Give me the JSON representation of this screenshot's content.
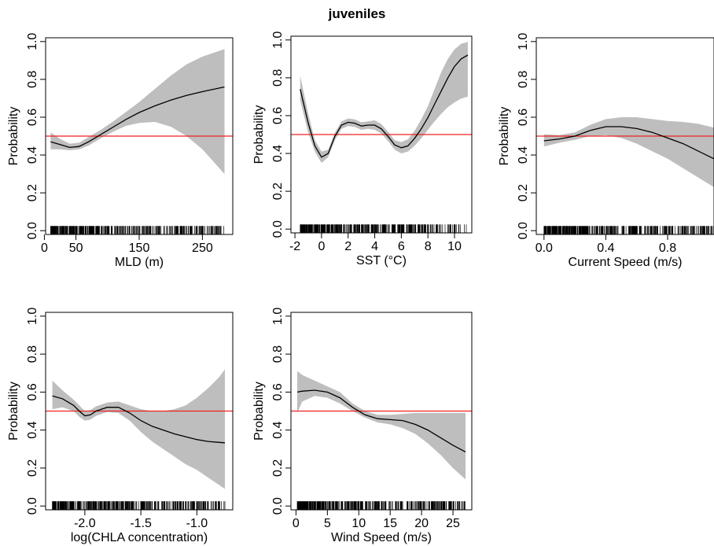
{
  "figure_title": "juveniles",
  "colors": {
    "band": "#bebebe",
    "line": "#000000",
    "reference": "#ee2222",
    "frame": "#000000"
  },
  "chart_data": [
    {
      "type": "line",
      "xlabel": "MLD (m)",
      "ylabel": "Probability",
      "xlim": [
        2,
        298
      ],
      "ylim": [
        -0.02,
        1.02
      ],
      "xticks": [
        0,
        50,
        150,
        250
      ],
      "xtick_labels": [
        "0",
        "50",
        "150",
        "250"
      ],
      "yticks": [
        0.0,
        0.2,
        0.4,
        0.6,
        0.8,
        1.0
      ],
      "ytick_labels": [
        "0.0",
        "0.2",
        "0.4",
        "0.6",
        "0.8",
        "1.0"
      ],
      "reference_line": 0.5,
      "rug_range": [
        10,
        285
      ],
      "x": [
        10,
        25,
        40,
        55,
        70,
        90,
        110,
        130,
        150,
        175,
        200,
        225,
        250,
        285
      ],
      "y": [
        0.47,
        0.455,
        0.44,
        0.445,
        0.47,
        0.51,
        0.55,
        0.59,
        0.625,
        0.66,
        0.69,
        0.715,
        0.735,
        0.76
      ],
      "lower": [
        0.43,
        0.43,
        0.425,
        0.43,
        0.45,
        0.49,
        0.525,
        0.555,
        0.57,
        0.575,
        0.55,
        0.5,
        0.43,
        0.3
      ],
      "upper": [
        0.52,
        0.485,
        0.46,
        0.465,
        0.495,
        0.535,
        0.58,
        0.63,
        0.68,
        0.75,
        0.82,
        0.88,
        0.92,
        0.96
      ]
    },
    {
      "type": "line",
      "xlabel": "SST (°C)",
      "ylabel": "Probability",
      "xlim": [
        -2.3,
        11.3
      ],
      "ylim": [
        -0.02,
        1.02
      ],
      "xticks": [
        -2,
        0,
        2,
        4,
        6,
        8,
        10
      ],
      "xtick_labels": [
        "-2",
        "0",
        "2",
        "4",
        "6",
        "8",
        "10"
      ],
      "yticks": [
        0.0,
        0.2,
        0.4,
        0.6,
        0.8,
        1.0
      ],
      "ytick_labels": [
        "0.0",
        "0.2",
        "0.4",
        "0.6",
        "0.8",
        "1.0"
      ],
      "reference_line": 0.5,
      "rug_range": [
        -1.6,
        11
      ],
      "x": [
        -1.6,
        -1,
        -0.5,
        0,
        0.5,
        1,
        1.5,
        2,
        2.5,
        3,
        3.5,
        4,
        4.5,
        5,
        5.5,
        6,
        6.5,
        7,
        7.5,
        8,
        8.5,
        9,
        9.5,
        10,
        10.5,
        11
      ],
      "y": [
        0.74,
        0.56,
        0.44,
        0.38,
        0.4,
        0.49,
        0.55,
        0.565,
        0.56,
        0.545,
        0.55,
        0.55,
        0.53,
        0.49,
        0.445,
        0.43,
        0.44,
        0.48,
        0.53,
        0.59,
        0.66,
        0.73,
        0.8,
        0.86,
        0.9,
        0.92
      ],
      "lower": [
        0.68,
        0.51,
        0.41,
        0.35,
        0.38,
        0.47,
        0.53,
        0.545,
        0.54,
        0.525,
        0.53,
        0.525,
        0.505,
        0.465,
        0.42,
        0.4,
        0.41,
        0.44,
        0.48,
        0.525,
        0.57,
        0.61,
        0.645,
        0.67,
        0.69,
        0.7
      ],
      "upper": [
        0.81,
        0.61,
        0.47,
        0.41,
        0.42,
        0.51,
        0.57,
        0.585,
        0.58,
        0.565,
        0.57,
        0.575,
        0.555,
        0.515,
        0.47,
        0.46,
        0.475,
        0.52,
        0.58,
        0.65,
        0.74,
        0.83,
        0.9,
        0.95,
        0.98,
        0.99
      ]
    },
    {
      "type": "line",
      "xlabel": "Current Speed (m/s)",
      "ylabel": "Probability",
      "xlim": [
        -0.05,
        1.1
      ],
      "ylim": [
        -0.02,
        1.02
      ],
      "xticks": [
        0.0,
        0.4,
        0.8
      ],
      "xtick_labels": [
        "0.0",
        "0.4",
        "0.8"
      ],
      "yticks": [
        0.0,
        0.2,
        0.4,
        0.6,
        0.8,
        1.0
      ],
      "ytick_labels": [
        "0.0",
        "0.2",
        "0.4",
        "0.6",
        "0.8",
        "1.0"
      ],
      "reference_line": 0.5,
      "rug_range": [
        0.0,
        1.1
      ],
      "x": [
        0.0,
        0.1,
        0.2,
        0.3,
        0.4,
        0.5,
        0.6,
        0.7,
        0.8,
        0.9,
        1.0,
        1.1
      ],
      "y": [
        0.475,
        0.485,
        0.5,
        0.53,
        0.55,
        0.55,
        0.54,
        0.52,
        0.49,
        0.46,
        0.42,
        0.38
      ],
      "lower": [
        0.445,
        0.465,
        0.48,
        0.5,
        0.505,
        0.49,
        0.46,
        0.42,
        0.38,
        0.33,
        0.28,
        0.23
      ],
      "upper": [
        0.51,
        0.505,
        0.52,
        0.56,
        0.59,
        0.6,
        0.6,
        0.59,
        0.58,
        0.575,
        0.565,
        0.545
      ]
    },
    {
      "type": "line",
      "xlabel": "log(CHLA concentration)",
      "ylabel": "Probability",
      "xlim": [
        -2.35,
        -0.68
      ],
      "ylim": [
        -0.02,
        1.02
      ],
      "xticks": [
        -2.0,
        -1.5,
        -1.0
      ],
      "xtick_labels": [
        "-2.0",
        "-1.5",
        "-1.0"
      ],
      "yticks": [
        0.0,
        0.2,
        0.4,
        0.6,
        0.8,
        1.0
      ],
      "ytick_labels": [
        "0.0",
        "0.2",
        "0.4",
        "0.6",
        "0.8",
        "1.0"
      ],
      "reference_line": 0.5,
      "rug_range": [
        -2.29,
        -0.75
      ],
      "x": [
        -2.29,
        -2.2,
        -2.1,
        -2.05,
        -2.0,
        -1.95,
        -1.9,
        -1.8,
        -1.7,
        -1.6,
        -1.5,
        -1.4,
        -1.3,
        -1.2,
        -1.1,
        -1.0,
        -0.9,
        -0.8,
        -0.75
      ],
      "y": [
        0.58,
        0.565,
        0.53,
        0.5,
        0.475,
        0.48,
        0.5,
        0.52,
        0.52,
        0.49,
        0.45,
        0.42,
        0.4,
        0.38,
        0.365,
        0.35,
        0.34,
        0.335,
        0.333
      ],
      "lower": [
        0.51,
        0.52,
        0.5,
        0.47,
        0.45,
        0.455,
        0.475,
        0.495,
        0.49,
        0.45,
        0.39,
        0.34,
        0.3,
        0.26,
        0.22,
        0.19,
        0.15,
        0.11,
        0.09
      ],
      "upper": [
        0.66,
        0.61,
        0.56,
        0.53,
        0.5,
        0.505,
        0.525,
        0.545,
        0.55,
        0.53,
        0.51,
        0.5,
        0.5,
        0.51,
        0.53,
        0.57,
        0.62,
        0.68,
        0.72
      ]
    },
    {
      "type": "line",
      "xlabel": "Wind Speed (m/s)",
      "ylabel": "Probability",
      "xlim": [
        -0.8,
        28
      ],
      "ylim": [
        -0.02,
        1.02
      ],
      "xticks": [
        0,
        5,
        10,
        15,
        20,
        25
      ],
      "xtick_labels": [
        "0",
        "5",
        "10",
        "15",
        "20",
        "25"
      ],
      "yticks": [
        0.0,
        0.2,
        0.4,
        0.6,
        0.8,
        1.0
      ],
      "ytick_labels": [
        "0.0",
        "0.2",
        "0.4",
        "0.6",
        "0.8",
        "1.0"
      ],
      "reference_line": 0.5,
      "rug_range": [
        0.2,
        27
      ],
      "x": [
        0.2,
        1,
        3,
        5,
        7,
        9,
        11,
        13,
        15,
        17,
        19,
        21,
        23,
        25,
        27
      ],
      "y": [
        0.6,
        0.605,
        0.61,
        0.6,
        0.57,
        0.52,
        0.48,
        0.46,
        0.455,
        0.45,
        0.43,
        0.4,
        0.36,
        0.32,
        0.285
      ],
      "lower": [
        0.49,
        0.55,
        0.58,
        0.57,
        0.54,
        0.5,
        0.465,
        0.44,
        0.43,
        0.41,
        0.38,
        0.33,
        0.27,
        0.2,
        0.14
      ],
      "upper": [
        0.71,
        0.69,
        0.66,
        0.63,
        0.6,
        0.54,
        0.5,
        0.48,
        0.48,
        0.485,
        0.49,
        0.49,
        0.49,
        0.49,
        0.49
      ]
    }
  ]
}
